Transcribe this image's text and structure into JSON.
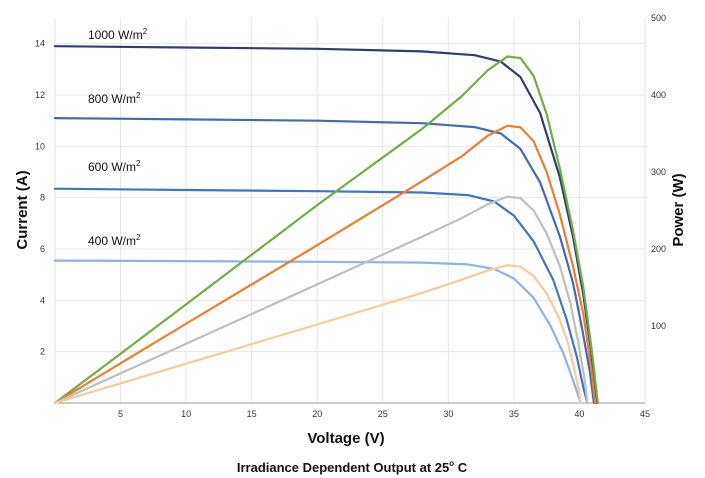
{
  "chart_data": {
    "type": "line",
    "caption": "Irradiance Dependent Output at 25",
    "caption_degree": "o",
    "caption_unit": " C",
    "xlabel": "Voltage (V)",
    "ylabel": "Current (A)",
    "y2label": "Power (W)",
    "xlim": [
      0,
      45
    ],
    "ylim": [
      0,
      15
    ],
    "y2lim": [
      0,
      500
    ],
    "x_ticks": [
      5,
      10,
      15,
      20,
      25,
      30,
      35,
      40,
      45
    ],
    "y_ticks": [
      2,
      4,
      6,
      8,
      10,
      12,
      14
    ],
    "y2_ticks": [
      100,
      200,
      300,
      400,
      500
    ],
    "grid": true,
    "curve_labels": [
      {
        "text": "1000 W/m",
        "sup": "2"
      },
      {
        "text": "800 W/m",
        "sup": "2"
      },
      {
        "text": "600 W/m",
        "sup": "2"
      },
      {
        "text": "400 W/m",
        "sup": "2"
      }
    ],
    "series": [
      {
        "axis": "current",
        "color": "#2e3f6e",
        "points": [
          [
            0,
            13.9
          ],
          [
            10,
            13.85
          ],
          [
            20,
            13.8
          ],
          [
            28,
            13.7
          ],
          [
            32,
            13.55
          ],
          [
            34,
            13.3
          ],
          [
            35.5,
            12.7
          ],
          [
            37,
            11.3
          ],
          [
            38.5,
            8.8
          ],
          [
            39.5,
            6.5
          ],
          [
            40.3,
            4.2
          ],
          [
            40.9,
            2.0
          ],
          [
            41.3,
            0.0
          ]
        ]
      },
      {
        "axis": "current",
        "color": "#4568b8",
        "points": [
          [
            0,
            11.1
          ],
          [
            10,
            11.05
          ],
          [
            20,
            11.0
          ],
          [
            28,
            10.9
          ],
          [
            32,
            10.75
          ],
          [
            34,
            10.5
          ],
          [
            35.5,
            9.9
          ],
          [
            37,
            8.6
          ],
          [
            38.5,
            6.5
          ],
          [
            39.5,
            4.7
          ],
          [
            40.2,
            2.9
          ],
          [
            40.8,
            1.2
          ],
          [
            41.1,
            0.0
          ]
        ]
      },
      {
        "axis": "current",
        "color": "#4472c4",
        "points": [
          [
            0,
            8.35
          ],
          [
            10,
            8.3
          ],
          [
            20,
            8.25
          ],
          [
            28,
            8.2
          ],
          [
            31.5,
            8.1
          ],
          [
            33.5,
            7.85
          ],
          [
            35,
            7.3
          ],
          [
            36.5,
            6.3
          ],
          [
            38,
            4.8
          ],
          [
            39,
            3.3
          ],
          [
            39.8,
            1.8
          ],
          [
            40.3,
            0.6
          ],
          [
            40.6,
            0.0
          ]
        ]
      },
      {
        "axis": "current",
        "color": "#8fb2e6",
        "points": [
          [
            0,
            5.55
          ],
          [
            10,
            5.53
          ],
          [
            20,
            5.5
          ],
          [
            28,
            5.47
          ],
          [
            31.5,
            5.4
          ],
          [
            33.5,
            5.22
          ],
          [
            35,
            4.85
          ],
          [
            36.5,
            4.1
          ],
          [
            37.8,
            3.0
          ],
          [
            38.8,
            1.9
          ],
          [
            39.5,
            0.9
          ],
          [
            39.9,
            0.3
          ],
          [
            40.1,
            0.0
          ]
        ]
      },
      {
        "axis": "power",
        "color": "#70ad47",
        "points": [
          [
            0,
            0
          ],
          [
            10,
            128
          ],
          [
            20,
            257
          ],
          [
            28,
            356
          ],
          [
            31,
            398
          ],
          [
            33,
            432
          ],
          [
            34.5,
            450
          ],
          [
            35.5,
            448
          ],
          [
            36.5,
            425
          ],
          [
            37.5,
            375
          ],
          [
            38.5,
            305
          ],
          [
            39.5,
            225
          ],
          [
            40.3,
            150
          ],
          [
            41,
            60
          ],
          [
            41.4,
            0
          ]
        ]
      },
      {
        "axis": "power",
        "color": "#ed7d31",
        "points": [
          [
            0,
            0
          ],
          [
            10,
            103
          ],
          [
            20,
            205
          ],
          [
            28,
            288
          ],
          [
            31,
            320
          ],
          [
            33,
            347
          ],
          [
            34.5,
            360
          ],
          [
            35.5,
            358
          ],
          [
            36.5,
            340
          ],
          [
            37.5,
            300
          ],
          [
            38.5,
            245
          ],
          [
            39.5,
            178
          ],
          [
            40.3,
            115
          ],
          [
            40.9,
            45
          ],
          [
            41.2,
            0
          ]
        ]
      },
      {
        "axis": "power",
        "color": "#bfbfbf",
        "points": [
          [
            0,
            0
          ],
          [
            10,
            77
          ],
          [
            20,
            154
          ],
          [
            28,
            216
          ],
          [
            31,
            240
          ],
          [
            33,
            258
          ],
          [
            34.5,
            268
          ],
          [
            35.5,
            266
          ],
          [
            36.5,
            250
          ],
          [
            37.5,
            220
          ],
          [
            38.5,
            178
          ],
          [
            39.3,
            130
          ],
          [
            39.9,
            80
          ],
          [
            40.4,
            30
          ],
          [
            40.6,
            0
          ]
        ]
      },
      {
        "axis": "power",
        "color": "#f8cb9c",
        "points": [
          [
            0,
            0
          ],
          [
            10,
            51
          ],
          [
            20,
            102
          ],
          [
            28,
            143
          ],
          [
            31,
            160
          ],
          [
            33,
            172
          ],
          [
            34.5,
            179
          ],
          [
            35.5,
            177
          ],
          [
            36.5,
            165
          ],
          [
            37.5,
            142
          ],
          [
            38.4,
            112
          ],
          [
            39.1,
            80
          ],
          [
            39.6,
            45
          ],
          [
            40,
            12
          ],
          [
            40.1,
            0
          ]
        ]
      }
    ]
  }
}
